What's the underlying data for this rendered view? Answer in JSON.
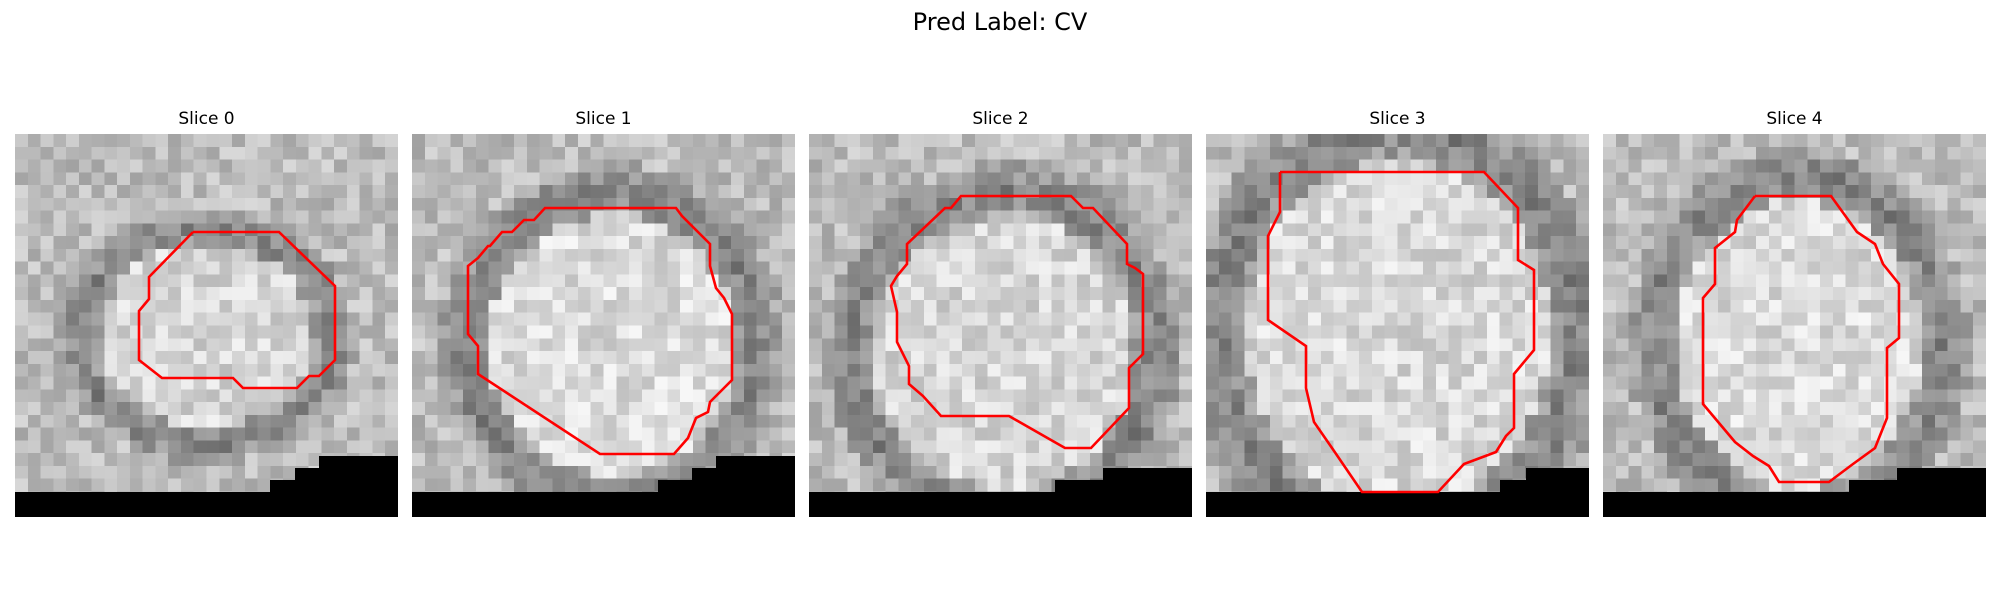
{
  "figure": {
    "title": "Pred Label: CV",
    "contour_color": "#ff0000"
  },
  "panels": [
    {
      "title": "Slice 0"
    },
    {
      "title": "Slice 1"
    },
    {
      "title": "Slice 2"
    },
    {
      "title": "Slice 3"
    },
    {
      "title": "Slice 4"
    }
  ]
}
